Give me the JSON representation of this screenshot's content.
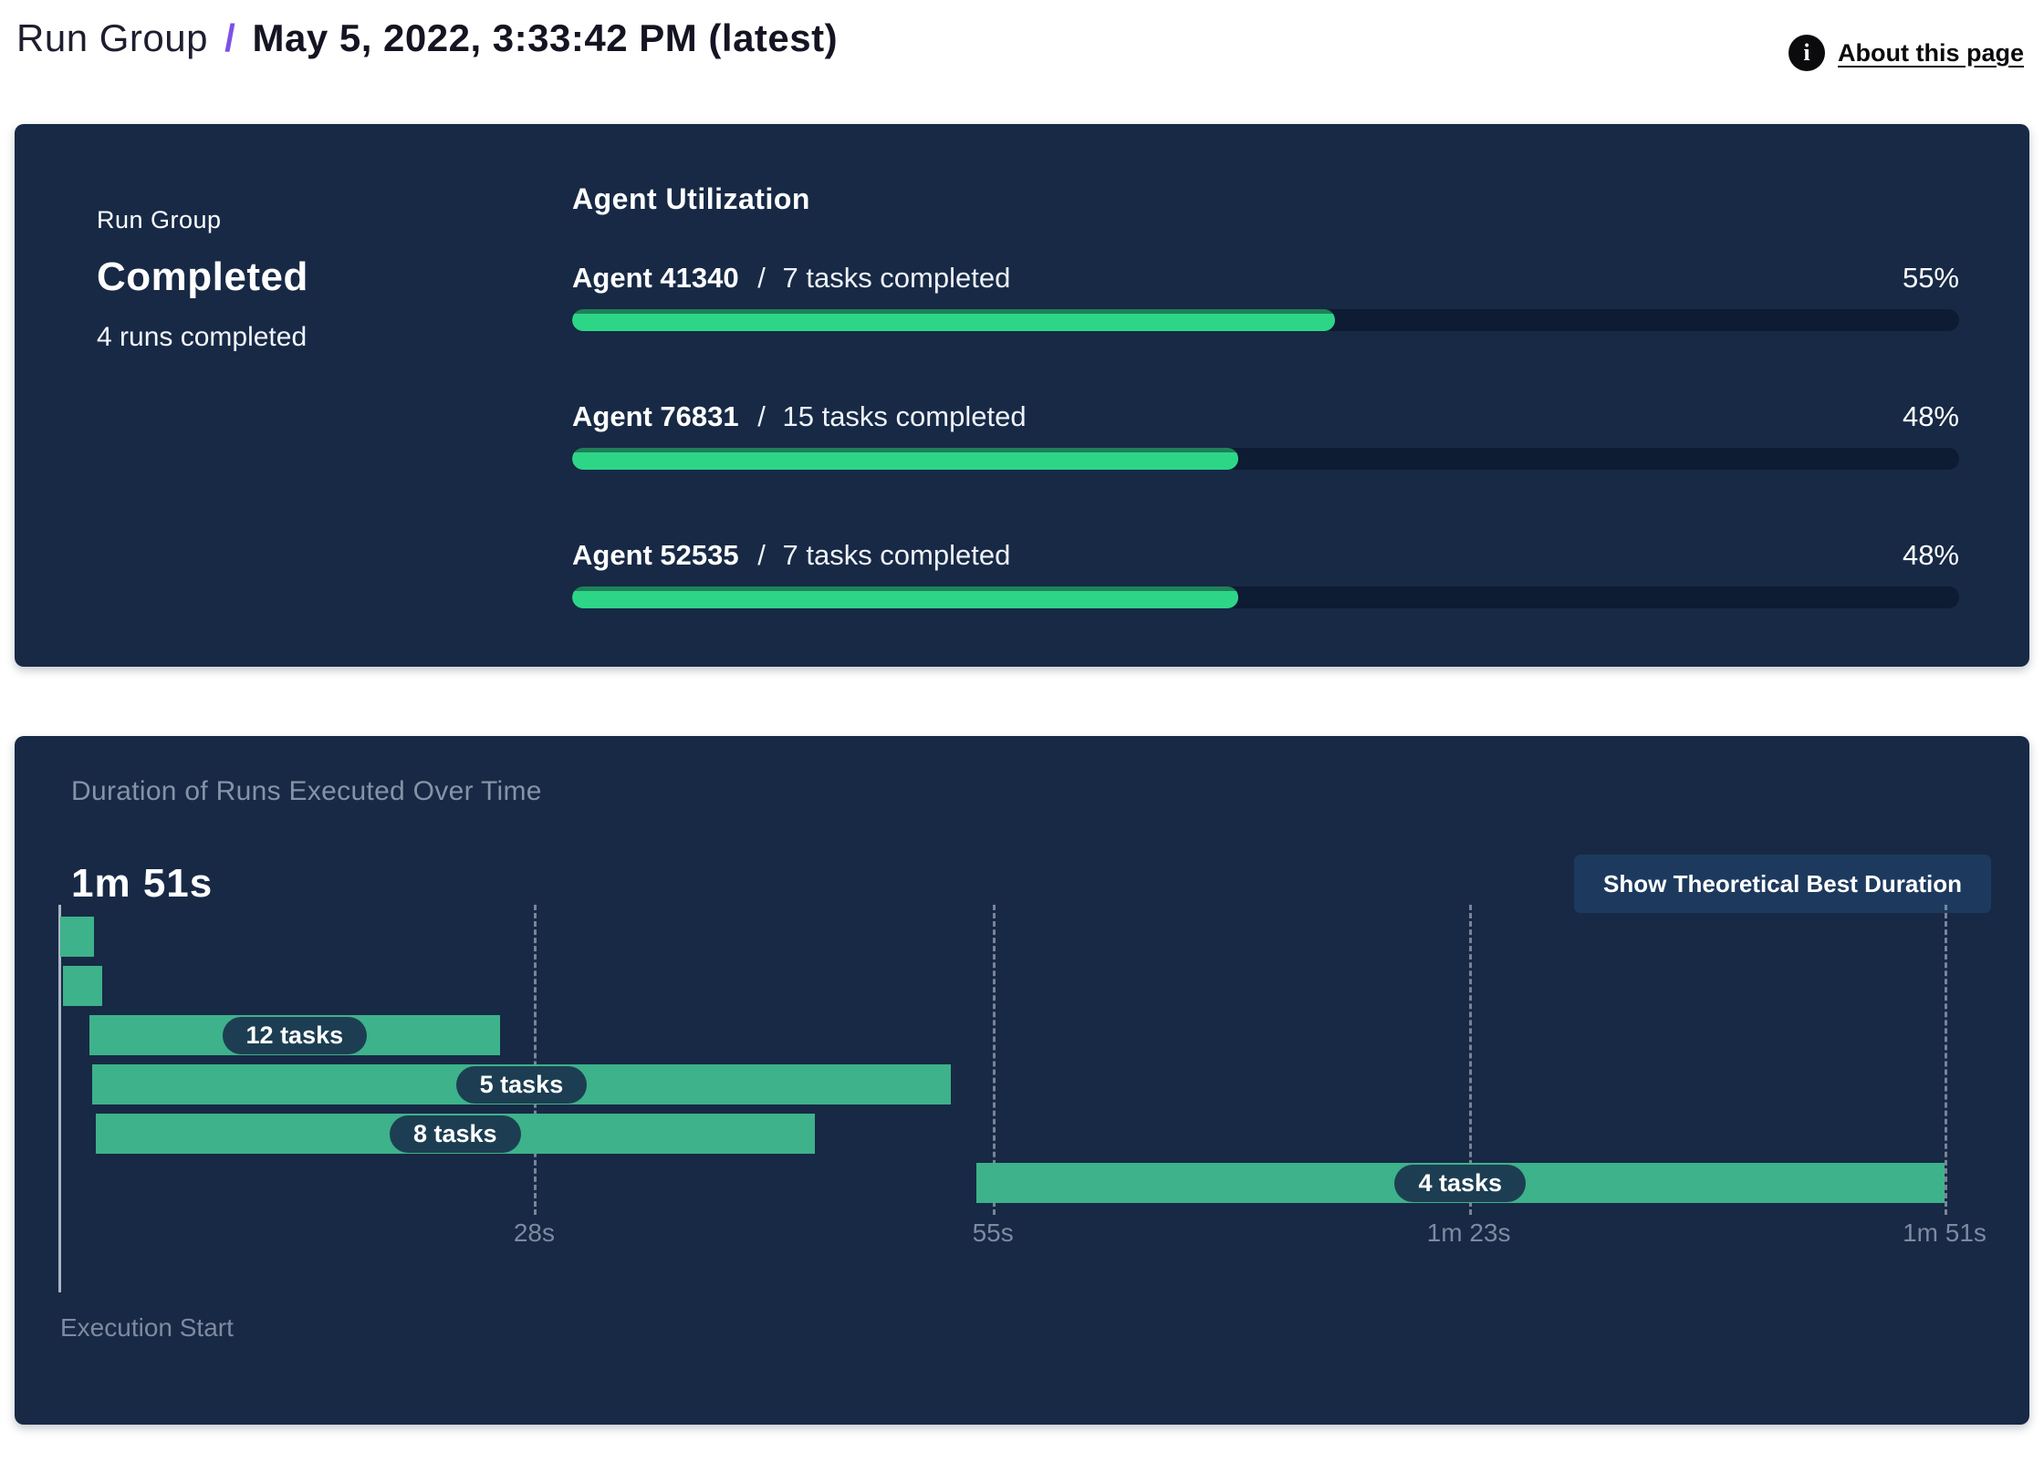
{
  "header": {
    "breadcrumb_root": "Run Group",
    "breadcrumb_separator": "/",
    "title": "May 5, 2022, 3:33:42 PM (latest)",
    "about_link": "About this page",
    "info_icon_glyph": "i"
  },
  "summary": {
    "label": "Run Group",
    "status": "Completed",
    "runs_completed": "4 runs completed"
  },
  "utilization": {
    "title": "Agent Utilization",
    "separator": "/",
    "agents": [
      {
        "name": "Agent 41340",
        "tasks": "7 tasks completed",
        "percent_label": "55%",
        "percent": 55
      },
      {
        "name": "Agent 76831",
        "tasks": "15 tasks completed",
        "percent_label": "48%",
        "percent": 48
      },
      {
        "name": "Agent 52535",
        "tasks": "7 tasks completed",
        "percent_label": "48%",
        "percent": 48
      }
    ]
  },
  "duration_panel": {
    "title": "Duration of Runs Executed Over Time",
    "total_duration": "1m 51s",
    "button_label": "Show Theoretical Best Duration",
    "execution_start_label": "Execution Start"
  },
  "chart_data": {
    "type": "bar",
    "subtype": "gantt",
    "title": "Duration of Runs Executed Over Time",
    "xlabel": "Execution Start",
    "x_unit": "seconds",
    "xlim": [
      0,
      111
    ],
    "ticks": [
      {
        "label": "28s",
        "seconds": 28
      },
      {
        "label": "55s",
        "seconds": 55
      },
      {
        "label": "1m 23s",
        "seconds": 83
      },
      {
        "label": "1m 51s",
        "seconds": 111
      }
    ],
    "bars": [
      {
        "label": "",
        "tasks": null,
        "start_s": 0.1,
        "end_s": 2.1
      },
      {
        "label": "",
        "tasks": null,
        "start_s": 0.25,
        "end_s": 2.6
      },
      {
        "label": "12 tasks",
        "tasks": 12,
        "start_s": 1.8,
        "end_s": 26.0
      },
      {
        "label": "5 tasks",
        "tasks": 5,
        "start_s": 2.0,
        "end_s": 52.5
      },
      {
        "label": "8 tasks",
        "tasks": 8,
        "start_s": 2.2,
        "end_s": 44.5
      },
      {
        "label": "4 tasks",
        "tasks": 4,
        "start_s": 54.0,
        "end_s": 111.0
      }
    ],
    "grid": "dashed-vertical",
    "legend": "none"
  },
  "colors": {
    "panel_bg": "#172945",
    "progress_fill": "#2dd687",
    "progress_fill_edge": "#1e8159",
    "progress_track": "#0d1b33",
    "gantt_bar": "#3eb28a",
    "task_pill_bg": "#1d3e52",
    "accent_purple": "#7b51e8",
    "muted_text": "#8593a8",
    "button_bg": "#1d3a5e"
  }
}
